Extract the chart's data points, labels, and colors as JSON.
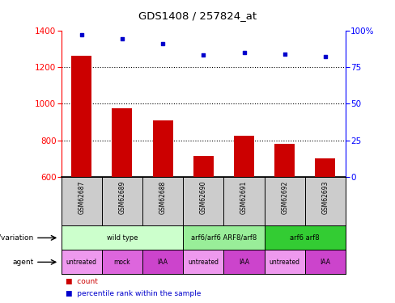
{
  "title": "GDS1408 / 257824_at",
  "samples": [
    "GSM62687",
    "GSM62689",
    "GSM62688",
    "GSM62690",
    "GSM62691",
    "GSM62692",
    "GSM62693"
  ],
  "counts": [
    1262,
    975,
    910,
    718,
    827,
    780,
    703
  ],
  "percentiles": [
    97,
    94,
    91,
    83,
    85,
    84,
    82
  ],
  "ylim_left": [
    600,
    1400
  ],
  "ylim_right": [
    0,
    100
  ],
  "yticks_left": [
    600,
    800,
    1000,
    1200,
    1400
  ],
  "yticks_right": [
    0,
    25,
    50,
    75,
    100
  ],
  "bar_color": "#cc0000",
  "dot_color": "#0000cc",
  "sample_area_color": "#cccccc",
  "geno_configs": [
    {
      "label": "wild type",
      "cols": [
        0,
        2
      ],
      "color": "#ccffcc"
    },
    {
      "label": "arf6/arf6 ARF8/arf8",
      "cols": [
        3,
        4
      ],
      "color": "#99ee99"
    },
    {
      "label": "arf6 arf8",
      "cols": [
        5,
        6
      ],
      "color": "#33cc33"
    }
  ],
  "agent_configs": [
    {
      "label": "untreated",
      "col": 0,
      "color": "#ee99ee"
    },
    {
      "label": "mock",
      "col": 1,
      "color": "#dd66dd"
    },
    {
      "label": "IAA",
      "col": 2,
      "color": "#cc44cc"
    },
    {
      "label": "untreated",
      "col": 3,
      "color": "#ee99ee"
    },
    {
      "label": "IAA",
      "col": 4,
      "color": "#cc44cc"
    },
    {
      "label": "untreated",
      "col": 5,
      "color": "#ee99ee"
    },
    {
      "label": "IAA",
      "col": 6,
      "color": "#cc44cc"
    }
  ]
}
